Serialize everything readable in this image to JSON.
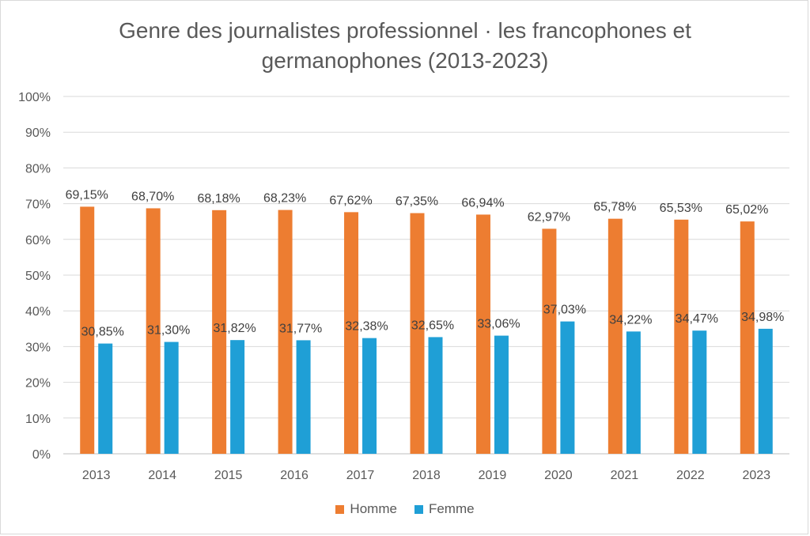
{
  "chart_data": {
    "type": "bar",
    "title_line1": "Genre des journalistes professionnel · les francophones et",
    "title_line2": "germanophones (2013-2023)",
    "categories": [
      "2013",
      "2014",
      "2015",
      "2016",
      "2017",
      "2018",
      "2019",
      "2020",
      "2021",
      "2022",
      "2023"
    ],
    "series": [
      {
        "name": "Homme",
        "color": "#ed7d31",
        "values": [
          69.15,
          68.7,
          68.18,
          68.23,
          67.62,
          67.35,
          66.94,
          62.97,
          65.78,
          65.53,
          65.02
        ],
        "labels": [
          "69,15%",
          "68,70%",
          "68,18%",
          "68,23%",
          "67,62%",
          "67,35%",
          "66,94%",
          "62,97%",
          "65,78%",
          "65,53%",
          "65,02%"
        ]
      },
      {
        "name": "Femme",
        "color": "#1f9fd6",
        "values": [
          30.85,
          31.3,
          31.82,
          31.77,
          32.38,
          32.65,
          33.06,
          37.03,
          34.22,
          34.47,
          34.98
        ],
        "labels": [
          "30,85%",
          "31,30%",
          "31,82%",
          "31,77%",
          "32,38%",
          "32,65%",
          "33,06%",
          "37,03%",
          "34,22%",
          "34,47%",
          "34,98%"
        ]
      }
    ],
    "yticks": [
      "0%",
      "10%",
      "20%",
      "30%",
      "40%",
      "50%",
      "60%",
      "70%",
      "80%",
      "90%",
      "100%"
    ],
    "ylim": [
      0,
      100
    ],
    "grid": true,
    "legend_position": "bottom"
  }
}
